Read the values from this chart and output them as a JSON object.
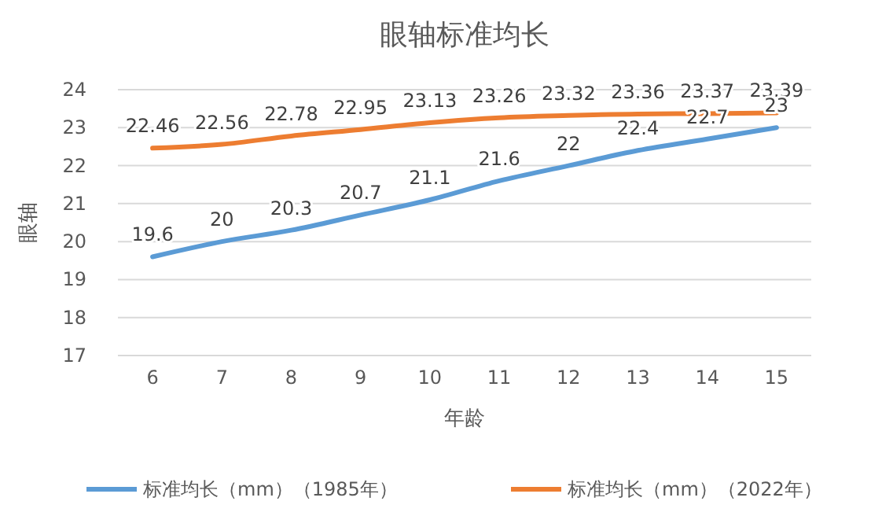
{
  "chart_data": {
    "type": "line",
    "title": "眼轴标准均长",
    "xlabel": "年龄",
    "ylabel": "眼轴",
    "categories": [
      "6",
      "7",
      "8",
      "9",
      "10",
      "11",
      "12",
      "13",
      "14",
      "15"
    ],
    "series": [
      {
        "name": "标准均长（mm）（1985年）",
        "color": "#5b9bd5",
        "values": [
          19.6,
          20,
          20.3,
          20.7,
          21.1,
          21.6,
          22,
          22.4,
          22.7,
          23
        ]
      },
      {
        "name": "标准均长（mm）（2022年）",
        "color": "#ed7d31",
        "values": [
          22.46,
          22.56,
          22.78,
          22.95,
          23.13,
          23.26,
          23.32,
          23.36,
          23.37,
          23.39
        ]
      }
    ],
    "ylim": [
      17,
      24
    ],
    "yticks": [
      17,
      18,
      19,
      20,
      21,
      22,
      23,
      24
    ],
    "grid": "y",
    "legend": "bottom",
    "data_labels": true,
    "marker": "none",
    "line_style": "solid"
  }
}
